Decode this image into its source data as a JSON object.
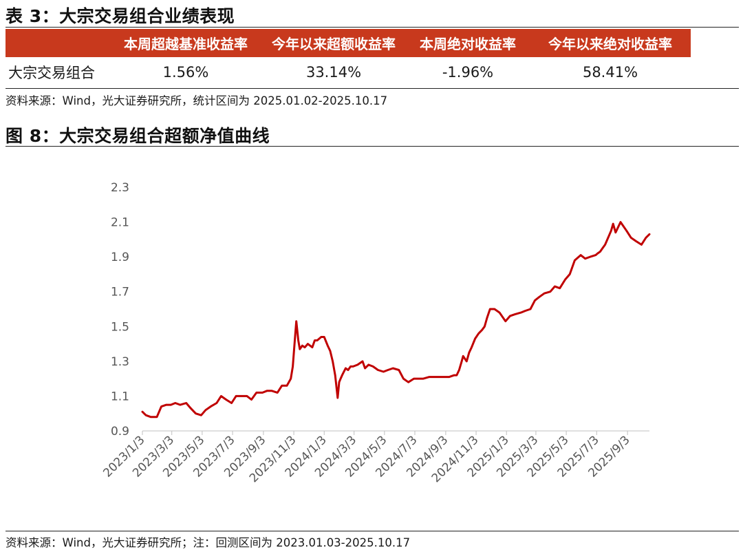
{
  "table_title": "表 3：大宗交易组合业绩表现",
  "table": {
    "headers": [
      "",
      "本周超越基准收益率",
      "今年以来超额收益率",
      "本周绝对收益率",
      "今年以来绝对收益率"
    ],
    "rows": [
      [
        "大宗交易组合",
        "1.56%",
        "33.14%",
        "-1.96%",
        "58.41%"
      ]
    ]
  },
  "table_source": "资料来源：Wind，光大证券研究所，统计区间为 2025.01.02-2025.10.17",
  "figure_title": "图 8：大宗交易组合超额净值曲线",
  "chart_source": "资料来源：Wind，光大证券研究所；注：回测区间为 2023.01.03-2025.10.17",
  "colors": {
    "line": "#c00000",
    "header_bg": "#c8391d"
  },
  "chart_data": {
    "type": "line",
    "xlabel": "",
    "ylabel": "",
    "ylim": [
      0.9,
      2.3
    ],
    "yticks": [
      0.9,
      1.1,
      1.3,
      1.5,
      1.7,
      1.9,
      2.1,
      2.3
    ],
    "ytick_labels": [
      "0.9",
      "1.1",
      "1.3",
      "1.5",
      "1.7",
      "1.9",
      "2.1",
      "2.3"
    ],
    "xlim": [
      "2023-01-03",
      "2025-10-17"
    ],
    "xticks": [
      "2023-01-03",
      "2023-03-03",
      "2023-05-03",
      "2023-07-03",
      "2023-09-03",
      "2023-11-03",
      "2024-01-03",
      "2024-03-03",
      "2024-05-03",
      "2024-07-03",
      "2024-09-03",
      "2024-11-03",
      "2025-01-03",
      "2025-03-03",
      "2025-05-03",
      "2025-07-03",
      "2025-09-03"
    ],
    "xtick_labels": [
      "2023/1/3",
      "2023/3/3",
      "2023/5/3",
      "2023/7/3",
      "2023/9/3",
      "2023/11/3",
      "2024/1/3",
      "2024/3/3",
      "2024/5/3",
      "2024/7/3",
      "2024/9/3",
      "2024/11/3",
      "2025/1/3",
      "2025/3/3",
      "2025/5/3",
      "2025/7/3",
      "2025/9/3"
    ],
    "grid": false,
    "legend": "none",
    "series": [
      {
        "x": [
          "2023-01-03",
          "2023-01-10",
          "2023-01-20",
          "2023-02-01",
          "2023-02-10",
          "2023-02-20",
          "2023-03-01",
          "2023-03-10",
          "2023-03-20",
          "2023-04-01",
          "2023-04-10",
          "2023-04-20",
          "2023-05-01",
          "2023-05-10",
          "2023-05-20",
          "2023-06-01",
          "2023-06-10",
          "2023-06-20",
          "2023-07-01",
          "2023-07-10",
          "2023-07-20",
          "2023-08-01",
          "2023-08-10",
          "2023-08-20",
          "2023-09-01",
          "2023-09-10",
          "2023-09-20",
          "2023-10-01",
          "2023-10-10",
          "2023-10-20",
          "2023-10-28",
          "2023-11-01",
          "2023-11-05",
          "2023-11-08",
          "2023-11-12",
          "2023-11-15",
          "2023-11-20",
          "2023-11-25",
          "2023-12-01",
          "2023-12-10",
          "2023-12-15",
          "2023-12-20",
          "2023-12-28",
          "2024-01-03",
          "2024-01-10",
          "2024-01-15",
          "2024-01-20",
          "2024-01-25",
          "2024-01-30",
          "2024-02-02",
          "2024-02-05",
          "2024-02-08",
          "2024-02-15",
          "2024-02-20",
          "2024-02-25",
          "2024-03-01",
          "2024-03-10",
          "2024-03-20",
          "2024-03-25",
          "2024-04-01",
          "2024-04-10",
          "2024-04-20",
          "2024-05-01",
          "2024-05-10",
          "2024-05-20",
          "2024-06-01",
          "2024-06-10",
          "2024-06-20",
          "2024-07-01",
          "2024-07-10",
          "2024-07-20",
          "2024-08-01",
          "2024-08-10",
          "2024-08-20",
          "2024-09-01",
          "2024-09-10",
          "2024-09-20",
          "2024-09-25",
          "2024-09-30",
          "2024-10-05",
          "2024-10-08",
          "2024-10-15",
          "2024-10-20",
          "2024-10-25",
          "2024-11-01",
          "2024-11-08",
          "2024-11-15",
          "2024-11-20",
          "2024-11-25",
          "2024-12-01",
          "2024-12-10",
          "2024-12-20",
          "2025-01-01",
          "2025-01-10",
          "2025-01-20",
          "2025-02-01",
          "2025-02-10",
          "2025-02-20",
          "2025-03-01",
          "2025-03-10",
          "2025-03-20",
          "2025-04-01",
          "2025-04-10",
          "2025-04-20",
          "2025-05-01",
          "2025-05-10",
          "2025-05-20",
          "2025-06-01",
          "2025-06-10",
          "2025-06-20",
          "2025-07-01",
          "2025-07-05",
          "2025-07-10",
          "2025-07-15",
          "2025-07-20",
          "2025-08-01",
          "2025-08-05",
          "2025-08-10",
          "2025-08-15",
          "2025-08-20",
          "2025-09-01",
          "2025-09-10",
          "2025-09-20",
          "2025-10-01",
          "2025-10-10",
          "2025-10-17"
        ],
        "y": [
          1.01,
          0.99,
          0.98,
          0.98,
          1.04,
          1.05,
          1.05,
          1.06,
          1.05,
          1.06,
          1.03,
          1.0,
          0.99,
          1.02,
          1.04,
          1.06,
          1.1,
          1.08,
          1.06,
          1.1,
          1.1,
          1.1,
          1.08,
          1.12,
          1.12,
          1.13,
          1.13,
          1.12,
          1.16,
          1.16,
          1.2,
          1.27,
          1.42,
          1.53,
          1.42,
          1.37,
          1.39,
          1.38,
          1.4,
          1.38,
          1.42,
          1.42,
          1.44,
          1.44,
          1.39,
          1.36,
          1.3,
          1.22,
          1.09,
          1.18,
          1.2,
          1.22,
          1.26,
          1.25,
          1.27,
          1.27,
          1.28,
          1.3,
          1.26,
          1.28,
          1.27,
          1.25,
          1.24,
          1.25,
          1.26,
          1.25,
          1.2,
          1.18,
          1.2,
          1.2,
          1.2,
          1.21,
          1.21,
          1.21,
          1.21,
          1.21,
          1.22,
          1.22,
          1.25,
          1.3,
          1.33,
          1.3,
          1.35,
          1.38,
          1.43,
          1.46,
          1.48,
          1.5,
          1.55,
          1.6,
          1.6,
          1.58,
          1.53,
          1.56,
          1.57,
          1.58,
          1.59,
          1.6,
          1.65,
          1.67,
          1.69,
          1.7,
          1.73,
          1.72,
          1.77,
          1.8,
          1.88,
          1.91,
          1.89,
          1.9,
          1.91,
          1.92,
          1.93,
          1.95,
          1.97,
          2.05,
          2.09,
          2.04,
          2.07,
          2.1,
          2.05,
          2.01,
          1.99,
          1.97,
          2.01,
          2.03
        ]
      }
    ]
  }
}
